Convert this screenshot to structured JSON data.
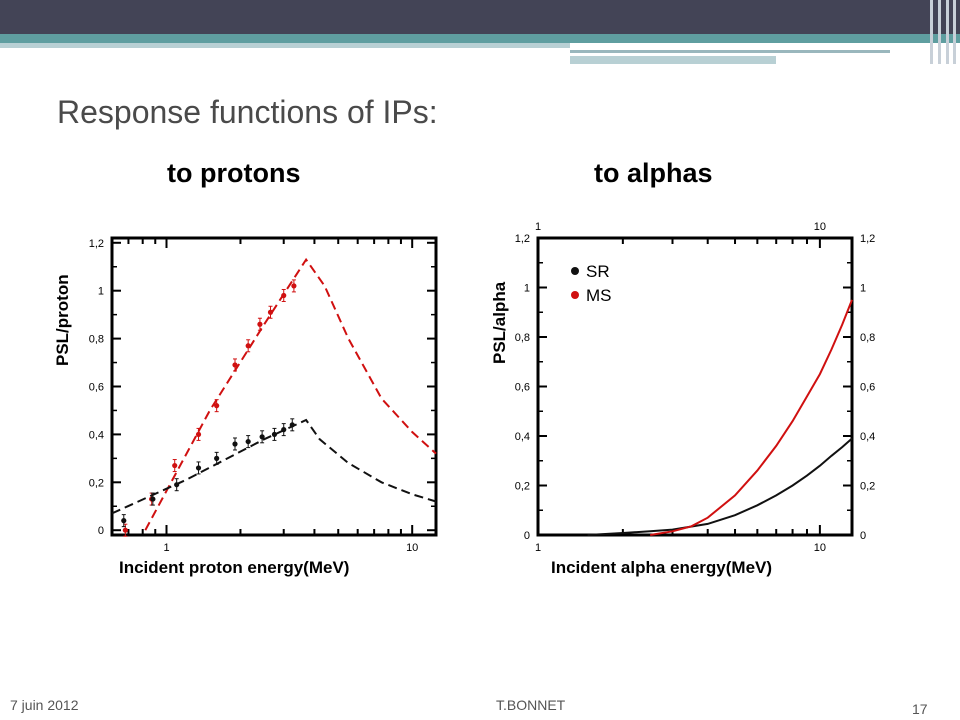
{
  "slide": {
    "title": "Response functions of IPs:",
    "footer_date": "7  juin 2012",
    "footer_author": "T.BONNET",
    "page_number": "17"
  },
  "chart_data": [
    {
      "type": "scatter",
      "subtitle": "to protons",
      "xlabel": "Incident proton energy(MeV)",
      "ylabel": "PSL/proton",
      "xscale": "log",
      "xlim": [
        0.6,
        12.5
      ],
      "ylim": [
        -0.02,
        1.22
      ],
      "x_ticks": [
        "1",
        "10"
      ],
      "y_ticks": [
        "0",
        "0,2",
        "0,4",
        "0,6",
        "0,8",
        "1",
        "1,2"
      ],
      "series": [
        {
          "color": "#d01010",
          "points_x": [
            0.68,
            0.87,
            1.08,
            1.35,
            1.6,
            1.9,
            2.15,
            2.4,
            2.65,
            3.0,
            3.3
          ],
          "points_y": [
            0.0,
            0.13,
            0.27,
            0.4,
            0.52,
            0.69,
            0.77,
            0.86,
            0.91,
            0.98,
            1.02
          ],
          "fit_x": [
            0.82,
            1.5,
            2.5,
            3.7,
            4.4,
            5.5,
            7.5,
            10,
            12.5
          ],
          "fit_y": [
            0.0,
            0.5,
            0.86,
            1.13,
            1.02,
            0.8,
            0.55,
            0.41,
            0.32
          ]
        },
        {
          "color": "#111111",
          "points_x": [
            0.67,
            0.88,
            1.1,
            1.35,
            1.6,
            1.9,
            2.15,
            2.45,
            2.75,
            3.0,
            3.25
          ],
          "points_y": [
            0.04,
            0.13,
            0.19,
            0.26,
            0.3,
            0.36,
            0.37,
            0.39,
            0.4,
            0.42,
            0.44
          ],
          "fit_x": [
            0.6,
            1.2,
            2.5,
            3.7,
            4.2,
            5.5,
            7.5,
            10,
            12.5
          ],
          "fit_y": [
            0.07,
            0.21,
            0.38,
            0.46,
            0.38,
            0.28,
            0.2,
            0.15,
            0.12
          ]
        }
      ]
    },
    {
      "type": "line",
      "subtitle": "to alphas",
      "xlabel": "Incident alpha energy(MeV)",
      "ylabel": "PSL/alpha",
      "xscale": "log",
      "xlim": [
        1,
        13
      ],
      "ylim": [
        0,
        1.2
      ],
      "x_ticks": [
        "1",
        "10"
      ],
      "y_ticks": [
        "0",
        "0,2",
        "0,4",
        "0,6",
        "0,8",
        "1",
        "1,2"
      ],
      "legend": [
        "SR",
        "MS"
      ],
      "legend_position": "top-left",
      "series": [
        {
          "name": "SR",
          "color": "#111111",
          "x": [
            1.5,
            2,
            2.5,
            3,
            4,
            5,
            6,
            7,
            8,
            9,
            10,
            11,
            12,
            13
          ],
          "y": [
            0.0,
            0.008,
            0.015,
            0.022,
            0.045,
            0.08,
            0.12,
            0.16,
            0.2,
            0.24,
            0.28,
            0.32,
            0.355,
            0.39
          ]
        },
        {
          "name": "MS",
          "color": "#d01010",
          "x": [
            2.5,
            3,
            3.5,
            4,
            5,
            6,
            7,
            8,
            9,
            10,
            11,
            12,
            13
          ],
          "y": [
            0.0,
            0.015,
            0.035,
            0.07,
            0.16,
            0.26,
            0.36,
            0.46,
            0.56,
            0.65,
            0.75,
            0.85,
            0.95
          ]
        }
      ]
    }
  ]
}
